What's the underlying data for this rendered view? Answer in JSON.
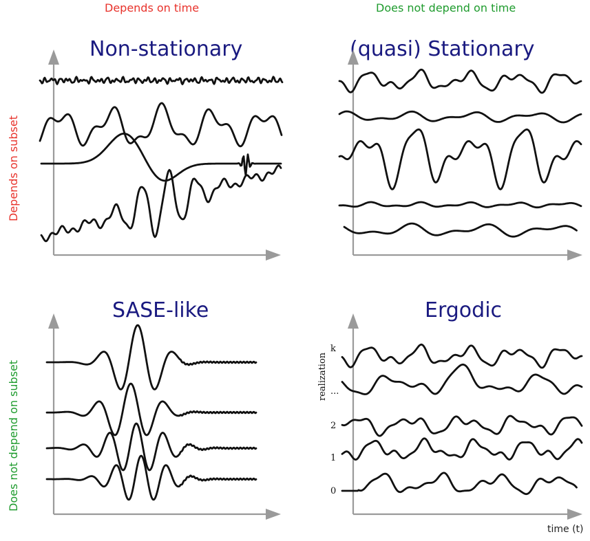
{
  "header": {
    "left": "Depends on time",
    "right": "Does not depend on time"
  },
  "side": {
    "top": "Depends on subset",
    "bottom": "Does not depend on subset"
  },
  "panels": {
    "nonstationary": {
      "title": "Non-stationary"
    },
    "stationary": {
      "title": "(quasi) Stationary"
    },
    "sase": {
      "title": "SASE-like"
    },
    "ergodic": {
      "title": "Ergodic",
      "y_label": "realization",
      "x_label": "time (t)",
      "ticks": [
        "k",
        "...",
        "2",
        "1",
        "0"
      ]
    }
  },
  "colors": {
    "red": "#e8322b",
    "green": "#1e9b2d",
    "title_blue": "#1a1a80",
    "axis_gray": "#9a9a9a"
  }
}
